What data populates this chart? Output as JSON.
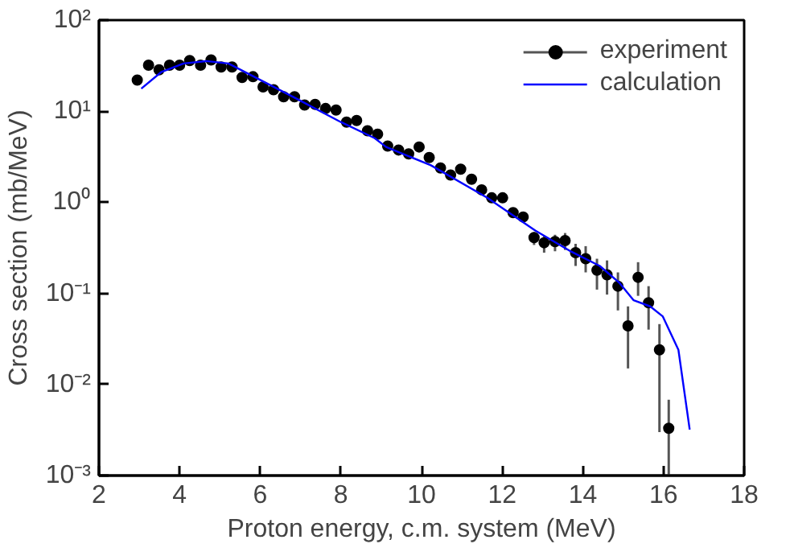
{
  "chart_data": {
    "type": "scatter",
    "xlabel": "Proton energy, c.m. system (MeV)",
    "ylabel": "Cross section (mb/MeV)",
    "log": "y",
    "xlim": [
      2,
      18
    ],
    "ylim": [
      0.001,
      100
    ],
    "xticks": [
      2,
      4,
      6,
      8,
      10,
      12,
      14,
      16,
      18
    ],
    "yticks": [
      {
        "value": 0.001,
        "label": "10⁻³"
      },
      {
        "value": 0.01,
        "label": "10⁻²"
      },
      {
        "value": 0.1,
        "label": "10⁻¹"
      },
      {
        "value": 1,
        "label": "10⁰"
      },
      {
        "value": 10,
        "label": "10¹"
      },
      {
        "value": 100,
        "label": "10²"
      }
    ],
    "grid": false,
    "legend": "top right",
    "series": [
      {
        "name": "experiment",
        "color": "#000000",
        "marker": "circle",
        "x": [
          2.95,
          3.23,
          3.49,
          3.75,
          4.0,
          4.25,
          4.52,
          4.78,
          5.03,
          5.3,
          5.55,
          5.82,
          6.07,
          6.33,
          6.58,
          6.85,
          7.1,
          7.36,
          7.62,
          7.88,
          8.14,
          8.39,
          8.66,
          8.91,
          9.16,
          9.43,
          9.68,
          9.94,
          10.19,
          10.47,
          10.72,
          10.97,
          11.24,
          11.49,
          11.74,
          12.01,
          12.27,
          12.52,
          12.79,
          13.04,
          13.31,
          13.56,
          13.82,
          14.07,
          14.35,
          14.6,
          14.87,
          15.12,
          15.37,
          15.63,
          15.9,
          16.13
        ],
        "values": [
          22,
          32,
          28.5,
          32,
          32,
          36,
          32,
          36.5,
          30.6,
          30.6,
          23.5,
          23.9,
          18.5,
          17.2,
          14.4,
          14.4,
          11.7,
          11.9,
          10.7,
          10.3,
          7.6,
          7.9,
          6.1,
          5.6,
          4.15,
          3.75,
          3.4,
          4.05,
          3.1,
          2.38,
          1.99,
          2.31,
          1.79,
          1.37,
          1.12,
          1.12,
          0.77,
          0.69,
          0.41,
          0.36,
          0.37,
          0.38,
          0.28,
          0.24,
          0.18,
          0.16,
          0.12,
          0.044,
          0.15,
          0.079,
          0.024,
          0.0033
        ],
        "errors": [
          null,
          null,
          null,
          null,
          null,
          null,
          null,
          null,
          null,
          null,
          null,
          null,
          null,
          null,
          null,
          null,
          null,
          null,
          null,
          null,
          null,
          null,
          null,
          null,
          null,
          null,
          null,
          null,
          null,
          null,
          null,
          null,
          null,
          null,
          null,
          null,
          null,
          null,
          [
            0.34,
            0.47
          ],
          [
            0.28,
            0.43
          ],
          [
            0.29,
            0.44
          ],
          [
            0.3,
            0.46
          ],
          [
            0.2,
            0.35
          ],
          [
            0.17,
            0.33
          ],
          [
            0.11,
            0.24
          ],
          [
            0.097,
            0.23
          ],
          [
            0.065,
            0.17
          ],
          [
            0.015,
            0.072
          ],
          [
            0.094,
            0.22
          ],
          [
            0.04,
            0.12
          ],
          [
            0.003,
            0.046
          ],
          [
            0.001,
            0.0068
          ]
        ]
      },
      {
        "name": "calculation",
        "type": "line",
        "color": "#0000ff",
        "marker": "none",
        "line_style": "solid",
        "x": [
          3.05,
          3.54,
          4.1,
          4.66,
          5.21,
          5.77,
          6.89,
          8.0,
          8.84,
          9.12,
          10.23,
          11.63,
          12.82,
          13.72,
          14.42,
          14.91,
          15.26,
          15.67,
          15.98,
          16.37,
          16.65
        ],
        "values": [
          17.7,
          26.8,
          33.4,
          35.5,
          33.4,
          24.9,
          13.8,
          7.6,
          5.05,
          4.05,
          2.55,
          1.12,
          0.49,
          0.286,
          0.2,
          0.13,
          0.084,
          0.072,
          0.056,
          0.024,
          0.0032
        ]
      }
    ]
  }
}
